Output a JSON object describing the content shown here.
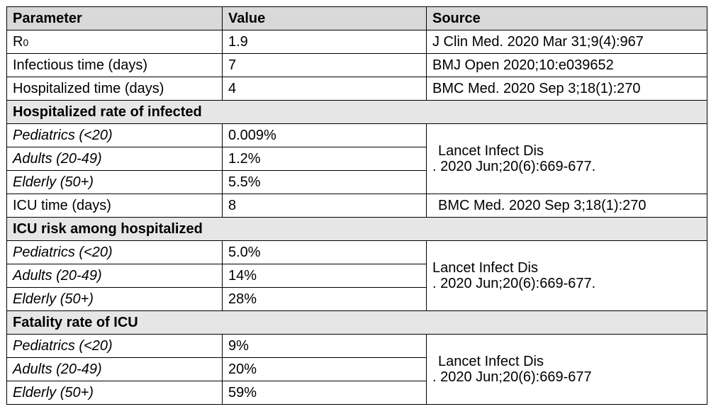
{
  "headers": {
    "parameter": "Parameter",
    "value": "Value",
    "source": "Source"
  },
  "rows": {
    "r0": {
      "param_main": "R",
      "param_sub": "0",
      "value": "1.9",
      "source": "J Clin Med. 2020 Mar 31;9(4):967"
    },
    "infectious": {
      "param": "Infectious time (days)",
      "value": "7",
      "source": "BMJ Open 2020;10:e039652"
    },
    "hospitalized_time": {
      "param": "Hospitalized time (days)",
      "value": "4",
      "source": "BMC Med. 2020 Sep 3;18(1):270"
    },
    "icu_time": {
      "param": "ICU time (days)",
      "value": "8",
      "source": "BMC Med. 2020 Sep 3;18(1):270"
    }
  },
  "sections": [
    {
      "title": "Hospitalized rate of infected",
      "rows": [
        {
          "param": "Pediatrics (<20)",
          "value": "0.009%"
        },
        {
          "param": "Adults (20-49)",
          "value": "1.2%"
        },
        {
          "param": "Elderly (50+)",
          "value": "5.5%"
        }
      ],
      "source_line1": "Lancet Infect Dis",
      "source_line2": ". 2020 Jun;20(6):669-677."
    },
    {
      "title": "ICU risk among hospitalized",
      "rows": [
        {
          "param": "Pediatrics (<20)",
          "value": "5.0%"
        },
        {
          "param": "Adults (20-49)",
          "value": "14%"
        },
        {
          "param": "Elderly (50+)",
          "value": "28%"
        }
      ],
      "source_line1": "Lancet Infect Dis",
      "source_line2": ". 2020 Jun;20(6):669-677."
    },
    {
      "title": "Fatality rate of ICU",
      "rows": [
        {
          "param": "Pediatrics (<20)",
          "value": "9%"
        },
        {
          "param": "Adults (20-49)",
          "value": "20%"
        },
        {
          "param": "Elderly (50+)",
          "value": "59%"
        }
      ],
      "source_line1": "Lancet Infect Dis",
      "source_line2": ". 2020 Jun;20(6):669-677"
    }
  ]
}
